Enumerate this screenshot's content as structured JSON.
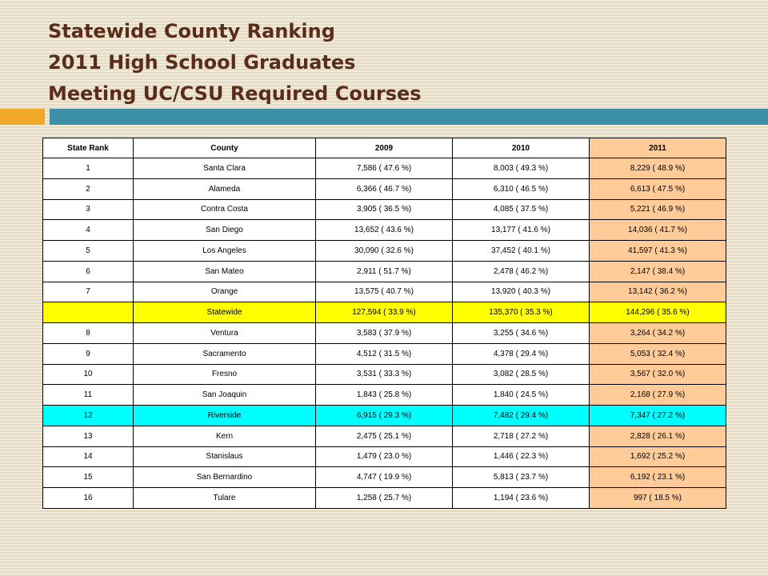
{
  "title": {
    "line1": "Statewide County Ranking",
    "line2": "2011 High School Graduates",
    "line3": "Meeting UC/CSU Required Courses"
  },
  "colors": {
    "background": "#ece4d2",
    "title_text": "#5a2d1a",
    "accent_orange": "#f0a829",
    "accent_teal": "#3b8fa7",
    "col_2011_fill": "#ffcc99",
    "statewide_fill": "#ffff00",
    "riverside_fill": "#00ffff"
  },
  "table": {
    "headers": [
      "State Rank",
      "County",
      "2009",
      "2010",
      "2011"
    ],
    "rows": [
      {
        "rank": "1",
        "county": "Santa Clara",
        "y2009": "7,586 ( 47.6 %)",
        "y2010": "8,003 ( 49.3 %)",
        "y2011": "8,229 ( 48.9 %)"
      },
      {
        "rank": "2",
        "county": "Alameda",
        "y2009": "6,366 ( 46.7 %)",
        "y2010": "6,310 ( 46.5 %)",
        "y2011": "6,613 ( 47.5 %)"
      },
      {
        "rank": "3",
        "county": "Contra Costa",
        "y2009": "3,905 ( 36.5 %)",
        "y2010": "4,085 ( 37.5 %)",
        "y2011": "5,221 ( 46.9 %)"
      },
      {
        "rank": "4",
        "county": "San Diego",
        "y2009": "13,652 ( 43.6 %)",
        "y2010": "13,177 ( 41.6 %)",
        "y2011": "14,036 ( 41.7 %)"
      },
      {
        "rank": "5",
        "county": "Los Angeles",
        "y2009": "30,090 ( 32.6 %)",
        "y2010": "37,452 ( 40.1 %)",
        "y2011": "41,597 ( 41.3 %)"
      },
      {
        "rank": "6",
        "county": "San Mateo",
        "y2009": "2,911 ( 51.7 %)",
        "y2010": "2,478 ( 46.2 %)",
        "y2011": "2,147 ( 38.4 %)"
      },
      {
        "rank": "7",
        "county": "Orange",
        "y2009": "13,575 ( 40.7 %)",
        "y2010": "13,920 ( 40.3 %)",
        "y2011": "13,142 ( 36.2 %)"
      },
      {
        "rank": "",
        "county": "Statewide",
        "y2009": "127,594 ( 33.9 %)",
        "y2010": "135,370 ( 35.3 %)",
        "y2011": "144,296 ( 35.6 %)",
        "highlight": "statewide"
      },
      {
        "rank": "8",
        "county": "Ventura",
        "y2009": "3,583 ( 37.9 %)",
        "y2010": "3,255 ( 34.6 %)",
        "y2011": "3,264 ( 34.2 %)"
      },
      {
        "rank": "9",
        "county": "Sacramento",
        "y2009": "4,512 ( 31.5 %)",
        "y2010": "4,378 ( 29.4 %)",
        "y2011": "5,053 ( 32.4 %)"
      },
      {
        "rank": "10",
        "county": "Fresno",
        "y2009": "3,531 ( 33.3 %)",
        "y2010": "3,082 ( 28.5 %)",
        "y2011": "3,567 ( 32.0 %)"
      },
      {
        "rank": "11",
        "county": "San Joaquin",
        "y2009": "1,843 ( 25.8 %)",
        "y2010": "1,840 ( 24.5 %)",
        "y2011": "2,168 ( 27.9 %)"
      },
      {
        "rank": "12",
        "county": "Riverside",
        "y2009": "6,915 ( 29.3 %)",
        "y2010": "7,482 ( 29.4 %)",
        "y2011": "7,347 ( 27.2 %)",
        "highlight": "riverside"
      },
      {
        "rank": "13",
        "county": "Kern",
        "y2009": "2,475 ( 25.1 %)",
        "y2010": "2,718 ( 27.2 %)",
        "y2011": "2,828 ( 26.1 %)"
      },
      {
        "rank": "14",
        "county": "Stanislaus",
        "y2009": "1,479 ( 23.0 %)",
        "y2010": "1,446 ( 22.3 %)",
        "y2011": "1,692 ( 25.2 %)"
      },
      {
        "rank": "15",
        "county": "San Bernardino",
        "y2009": "4,747 ( 19.9 %)",
        "y2010": "5,813 ( 23.7 %)",
        "y2011": "6,192 ( 23.1 %)"
      },
      {
        "rank": "16",
        "county": "Tulare",
        "y2009": "1,258 ( 25.7 %)",
        "y2010": "1,194 ( 23.6 %)",
        "y2011": "997 ( 18.5 %)"
      }
    ]
  }
}
